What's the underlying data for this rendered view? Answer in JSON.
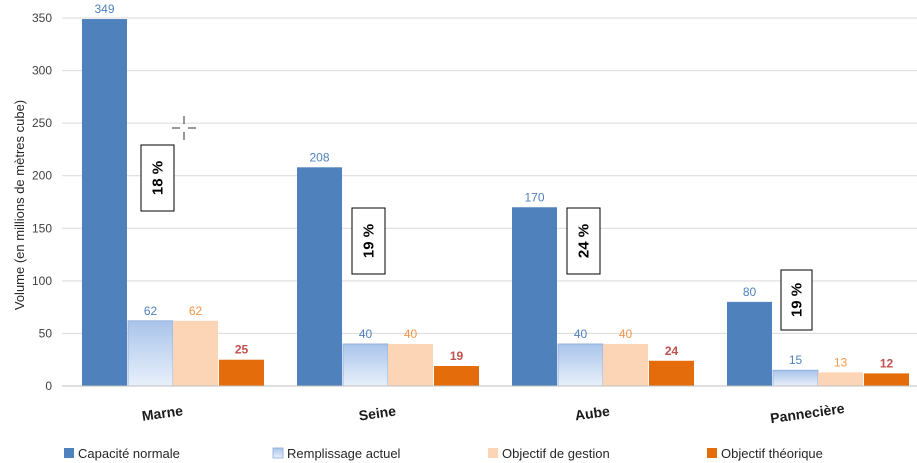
{
  "chart_data": {
    "type": "bar",
    "ylabel": "Volume (en millions de mètres cube)",
    "ylim": [
      0,
      350
    ],
    "yticks": [
      0,
      50,
      100,
      150,
      200,
      250,
      300,
      350
    ],
    "grid": true,
    "legend_position": "bottom",
    "categories": [
      "Marne",
      "Seine",
      "Aube",
      "Pannecière"
    ],
    "series": [
      {
        "name": "Capacité normale",
        "color": "#4f81bd",
        "label_color": "#4f81bd",
        "values": [
          349,
          208,
          170,
          80
        ]
      },
      {
        "name": "Remplissage actuel",
        "color": "#c6d9f1",
        "label_color": "#4f81bd",
        "values": [
          62,
          40,
          40,
          15
        ]
      },
      {
        "name": "Objectif de gestion",
        "color": "#fbd5b5",
        "label_color": "#f79646",
        "values": [
          62,
          40,
          40,
          13
        ]
      },
      {
        "name": "Objectif théorique",
        "color": "#e46c0a",
        "label_color": "#c0504d",
        "values": [
          25,
          19,
          24,
          12
        ]
      }
    ],
    "annotations": [
      "18 %",
      "19 %",
      "24 %",
      "19 %"
    ]
  }
}
